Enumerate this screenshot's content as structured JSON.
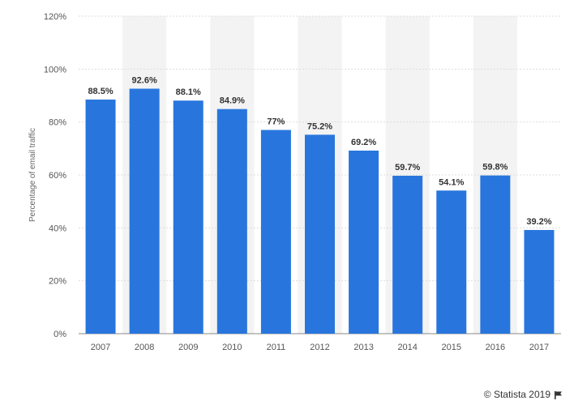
{
  "chart_data": {
    "type": "bar",
    "categories": [
      "2007",
      "2008",
      "2009",
      "2010",
      "2011",
      "2012",
      "2013",
      "2014",
      "2015",
      "2016",
      "2017"
    ],
    "values": [
      88.5,
      92.6,
      88.1,
      84.9,
      77,
      75.2,
      69.2,
      59.7,
      54.1,
      59.8,
      39.2
    ],
    "data_labels": [
      "88.5%",
      "92.6%",
      "88.1%",
      "84.9%",
      "77%",
      "75.2%",
      "69.2%",
      "59.7%",
      "54.1%",
      "59.8%",
      "39.2%"
    ],
    "ylabel": "Percentage of email traffic",
    "ylim": [
      0,
      120
    ],
    "yticks": [
      0,
      20,
      40,
      60,
      80,
      100,
      120
    ],
    "ytick_labels": [
      "0%",
      "20%",
      "40%",
      "60%",
      "80%",
      "100%",
      "120%"
    ],
    "grid": true,
    "bar_color": "#2876dd",
    "band_color": "#f3f3f3"
  },
  "credit": {
    "text": "© Statista 2019",
    "icon": "flag-icon"
  }
}
